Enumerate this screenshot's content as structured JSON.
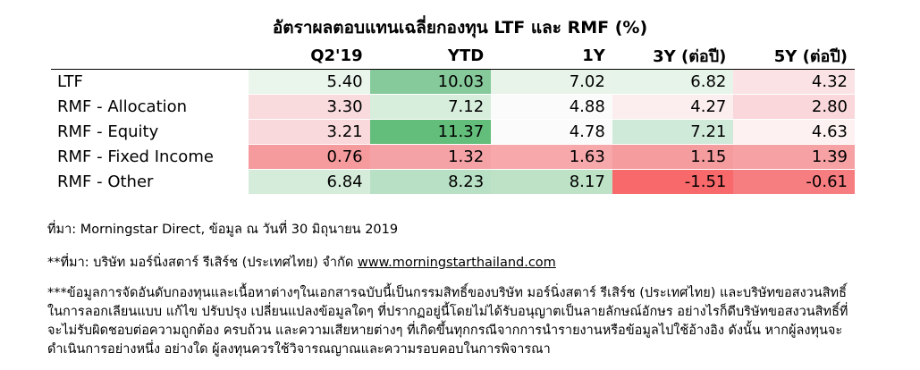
{
  "chart_data": {
    "type": "table",
    "title": "อัตราผลตอบแทนเฉลี่ยกองทุน LTF และ RMF (%)",
    "columns": [
      "Q2'19",
      "YTD",
      "1Y",
      "3Y (ต่อปี)",
      "5Y (ต่อปี)"
    ],
    "rows": [
      {
        "label": "LTF",
        "values": [
          "5.40",
          "10.03",
          "7.02",
          "6.82",
          "4.32"
        ]
      },
      {
        "label": "RMF - Allocation",
        "values": [
          "3.30",
          "7.12",
          "4.88",
          "4.27",
          "2.80"
        ]
      },
      {
        "label": "RMF - Equity",
        "values": [
          "3.21",
          "11.37",
          "4.78",
          "7.21",
          "4.63"
        ]
      },
      {
        "label": "RMF - Fixed Income",
        "values": [
          "0.76",
          "1.32",
          "1.63",
          "1.15",
          "1.39"
        ]
      },
      {
        "label": "RMF - Other",
        "values": [
          "6.84",
          "8.23",
          "8.17",
          "-1.51",
          "-0.61"
        ]
      }
    ],
    "cell_colors": [
      [
        "#eaf5ec",
        "#86c99a",
        "#e8f4ea",
        "#e7f4ea",
        "#fbe3e5"
      ],
      [
        "#f9dadd",
        "#d8eedd",
        "#fbfbfb",
        "#fcedee",
        "#fad7da"
      ],
      [
        "#f9d9dc",
        "#63be7b",
        "#fbfbfb",
        "#d0eada",
        "#fdf1f2"
      ],
      [
        "#f59a9d",
        "#f5a2a6",
        "#f6a8ab",
        "#f59c9f",
        "#f6a2a5"
      ],
      [
        "#d6ecdb",
        "#b8e0c4",
        "#bde2c6",
        "#f8696b",
        "#f67d80"
      ]
    ]
  },
  "notes": {
    "source": "ที่มา: Morningstar Direct, ข้อมูล ณ วันที่ 30 มิถุนายน 2019",
    "source2_prefix": "**ที่มา: บริษัท มอร์นิ่งสตาร์ รีเสิร์ช (ประเทศไทย) จำกัด",
    "source2_link": "www.morningstarthailand.com",
    "disclaimer": "***ข้อมูลการจัดอันดับกองทุนและเนื้อหาต่างๆในเอกสารฉบับนี้เป็นกรรมสิทธิ์ของบริษัท มอร์นิ่งสตาร์ รีเสิร์ช (ประเทศไทย) และบริษัทขอสงวนสิทธิ์ในการลอกเลียนแบบ แก้ไข ปรับปรุง เปลี่ยนแปลงข้อมูลใดๆ ที่ปรากฏอยู่นี้โดยไม่ได้รับอนุญาตเป็นลายลักษณ์อักษร อย่างไรก็ดีบริษัทขอสงวนสิทธิ์ที่จะไม่รับผิดชอบต่อความถูกต้อง ครบถ้วน และความเสียหายต่างๆ ที่เกิดขึ้นทุกกรณีจากการนำรายงานหรือข้อมูลไปใช้อ้างอิง ดังนั้น หากผู้ลงทุนจะดำเนินการอย่างหนึ่ง อย่างใด ผู้ลงทุนควรใช้วิจารณญาณและความรอบคอบในการพิจารณา"
  }
}
